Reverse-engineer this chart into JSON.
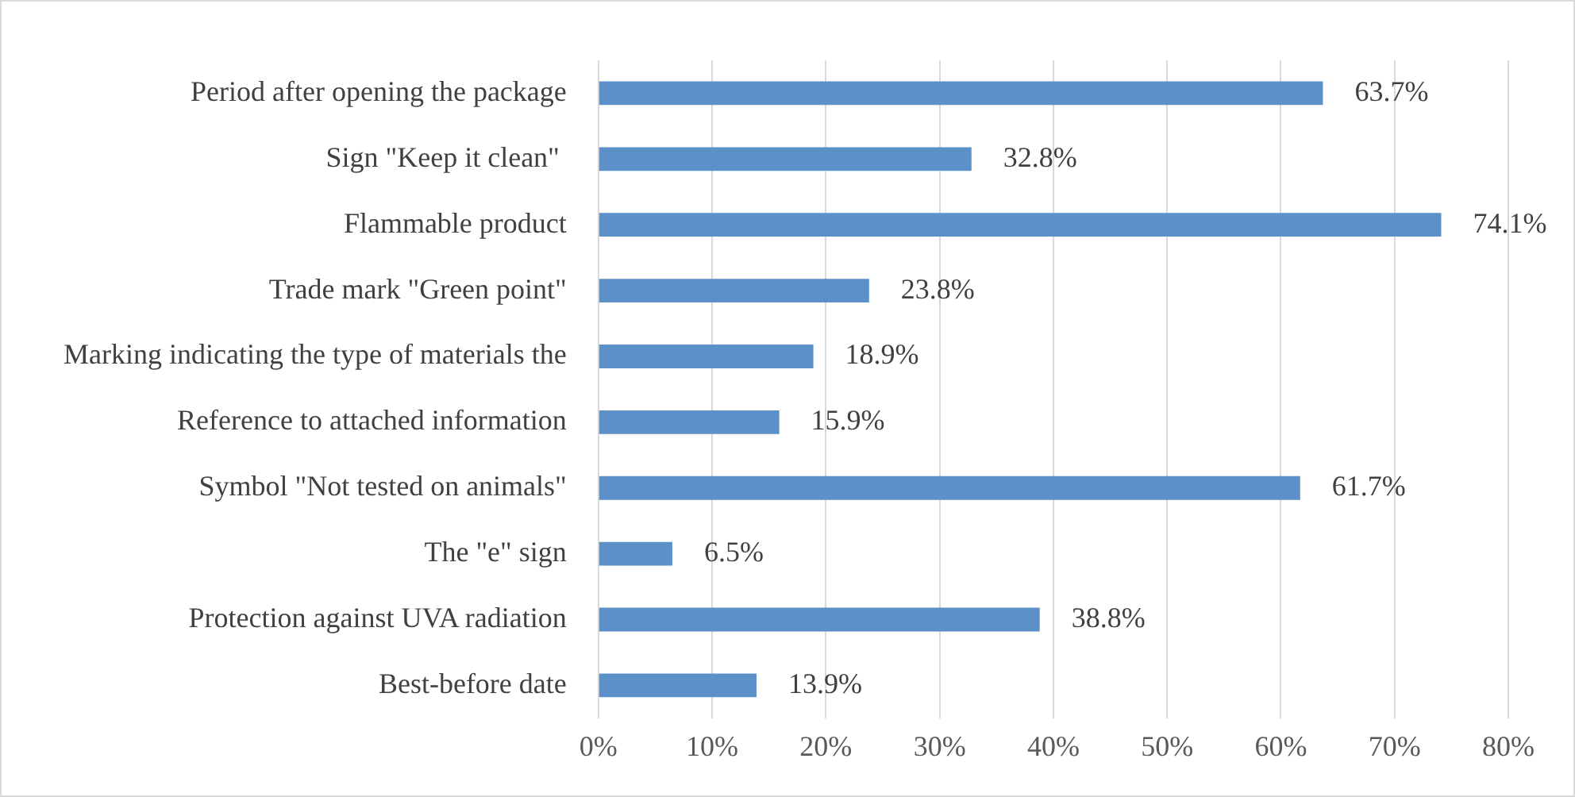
{
  "chart_data": {
    "type": "bar",
    "orientation": "horizontal",
    "categories": [
      "Period after opening the package",
      "Sign \"Keep it clean\" ",
      "Flammable product",
      "Trade mark \"Green point\"",
      "Marking indicating the type of materials the",
      "Reference to attached information",
      "Symbol \"Not tested on animals\"",
      "The \"e\" sign",
      "Protection against UVA radiation",
      "Best-before date"
    ],
    "values": [
      63.7,
      32.8,
      74.1,
      23.8,
      18.9,
      15.9,
      61.7,
      6.5,
      38.8,
      13.9
    ],
    "value_labels": [
      "63.7%",
      "32.8%",
      "74.1%",
      "23.8%",
      "18.9%",
      "15.9%",
      "61.7%",
      "6.5%",
      "38.8%",
      "13.9%"
    ],
    "color": "#5b90c8",
    "xlim": [
      0,
      80
    ],
    "xticks": [
      {
        "value": 0,
        "label": "0%"
      },
      {
        "value": 10,
        "label": "10%"
      },
      {
        "value": 20,
        "label": "20%"
      },
      {
        "value": 30,
        "label": "30%"
      },
      {
        "value": 40,
        "label": "40%"
      },
      {
        "value": 50,
        "label": "50%"
      },
      {
        "value": 60,
        "label": "60%"
      },
      {
        "value": 70,
        "label": "70%"
      },
      {
        "value": 80,
        "label": "80%"
      }
    ],
    "grid": "x",
    "legend": false
  }
}
